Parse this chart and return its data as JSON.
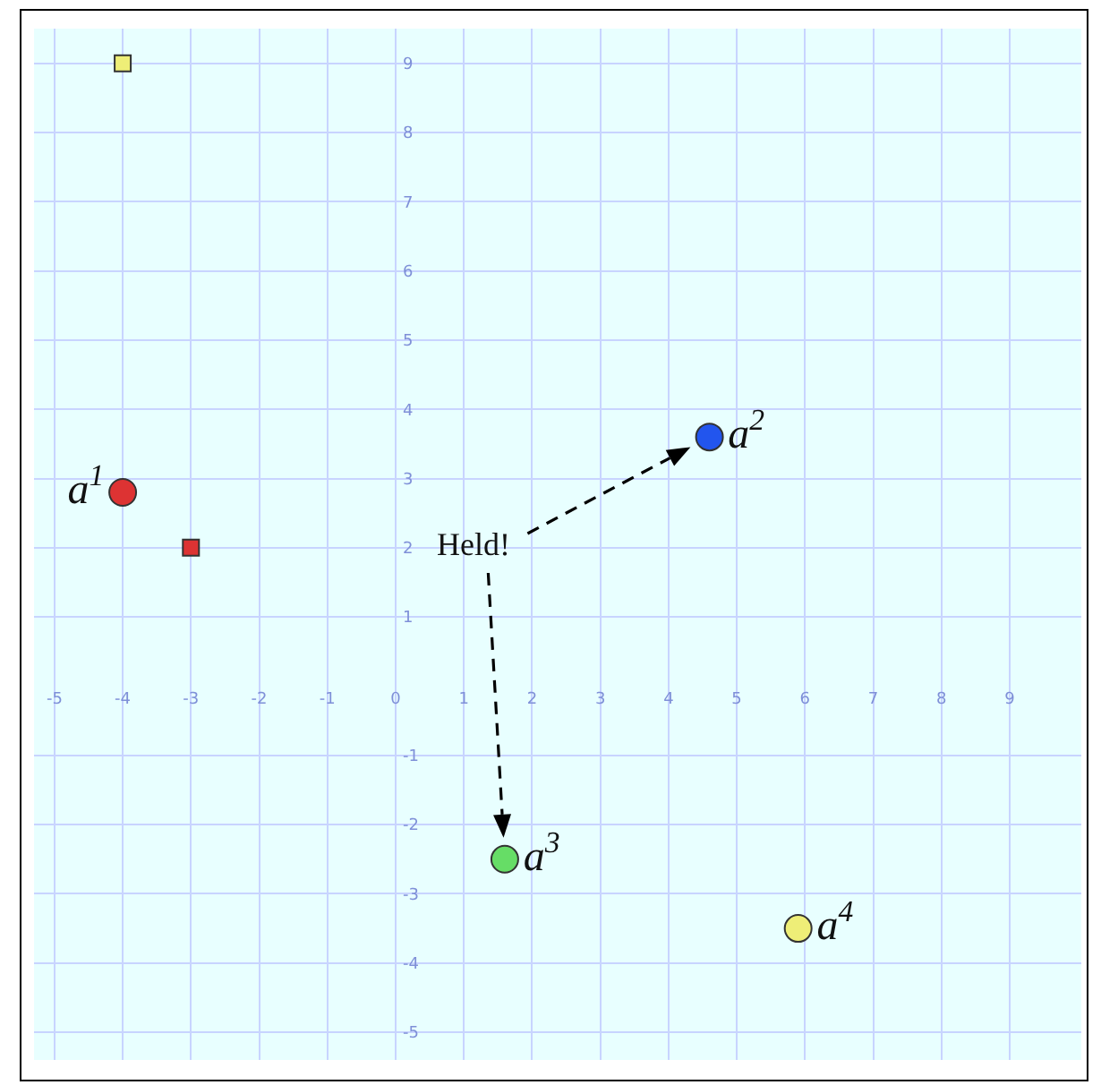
{
  "chart_data": {
    "type": "scatter",
    "series": [
      {
        "name": "a$^{1}$",
        "color": "#dd3333",
        "x": [
          -4.0
        ],
        "values": [
          2.8
        ],
        "marker": "circle"
      },
      {
        "name": "a$^{2}$",
        "color": "#2255ee",
        "x": [
          4.6
        ],
        "values": [
          3.6
        ],
        "marker": "circle"
      },
      {
        "name": "a$^{3}$",
        "color": "#66dd66",
        "x": [
          1.6
        ],
        "values": [
          -2.5
        ],
        "marker": "circle"
      },
      {
        "name": "a$^{4}$",
        "color": "#eeee77",
        "x": [
          5.9
        ],
        "values": [
          -3.5
        ],
        "marker": "circle"
      },
      {
        "color": "#eeee77",
        "x": [
          -4.0
        ],
        "values": [
          9.0
        ],
        "marker": "square"
      },
      {
        "color": "#dd3333",
        "x": [
          -3.0
        ],
        "values": [
          2.0
        ],
        "marker": "square"
      }
    ],
    "annotations": [
      "Held!"
    ],
    "xlim": [
      -5.3,
      10.05
    ],
    "ylim": [
      -5.4,
      9.5
    ],
    "xticks": [
      -5,
      -4,
      -3,
      -2,
      -1,
      0,
      1,
      2,
      3,
      4,
      5,
      6,
      7,
      8,
      9
    ],
    "yticks": [
      -5,
      -4,
      -3,
      -2,
      -1,
      1,
      2,
      3,
      4,
      5,
      6,
      7,
      8,
      9
    ],
    "grid": true
  }
}
